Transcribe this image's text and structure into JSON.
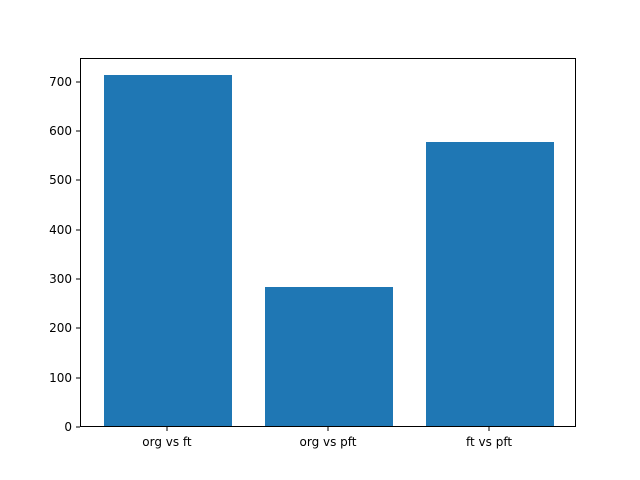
{
  "chart_data": {
    "type": "bar",
    "categories": [
      "org vs ft",
      "org vs pft",
      "ft vs pft"
    ],
    "values": [
      712,
      281,
      575
    ],
    "title": "",
    "xlabel": "",
    "ylabel": "",
    "ylim": [
      0,
      748
    ],
    "yticks": [
      0,
      100,
      200,
      300,
      400,
      500,
      600,
      700
    ],
    "bar_color": "#1f77b4",
    "grid": false,
    "legend": null
  }
}
